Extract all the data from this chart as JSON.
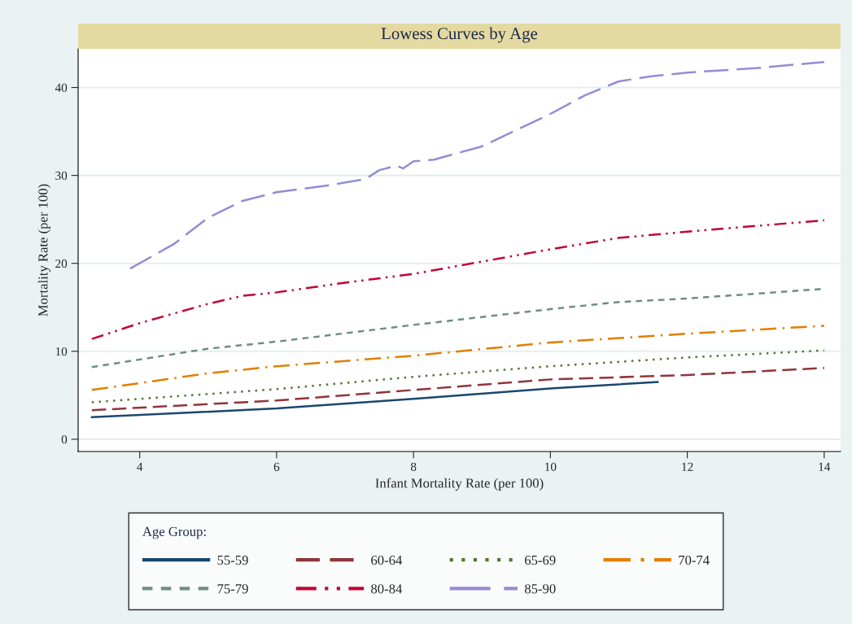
{
  "chart_data": {
    "type": "line",
    "title": "Lowess Curves by Age",
    "xlabel": "Infant Mortality Rate (per 100)",
    "ylabel": "Mortality Rate (per 100)",
    "legend_title": "Age Group:",
    "xlim": [
      3.1,
      14.24
    ],
    "xticks": [
      4,
      6,
      8,
      10,
      12,
      14
    ],
    "ylim": [
      -1.4,
      44.4
    ],
    "yticks": [
      0,
      10,
      20,
      30,
      40
    ],
    "grid": "y",
    "legend": "bottom",
    "marker": "none",
    "series": [
      {
        "name": "55-59",
        "color": "#1a476f",
        "line_style": "solid",
        "x": [
          3.3,
          6.0,
          8.0,
          10.04,
          11.57
        ],
        "values": [
          2.5,
          3.5,
          4.6,
          5.8,
          6.5
        ]
      },
      {
        "name": "60-64",
        "color": "#90353b",
        "line_style": "dashed",
        "x": [
          3.3,
          6,
          8,
          10,
          12,
          14
        ],
        "values": [
          3.3,
          4.4,
          5.6,
          6.8,
          7.3,
          8.1
        ]
      },
      {
        "name": "65-69",
        "color": "#55752f",
        "line_style": "dotted",
        "x": [
          3.3,
          6,
          8,
          10,
          12,
          14
        ],
        "values": [
          4.2,
          5.7,
          7.1,
          8.3,
          9.3,
          10.1
        ]
      },
      {
        "name": "70-74",
        "color": "#e37e00",
        "line_style": "dashdot",
        "x": [
          3.3,
          5,
          6,
          8,
          10,
          12,
          14
        ],
        "values": [
          5.6,
          7.5,
          8.3,
          9.5,
          11.0,
          12.0,
          12.9
        ]
      },
      {
        "name": "75-79",
        "color": "#6e8e84",
        "line_style": "shortdash",
        "x": [
          3.3,
          5,
          6,
          8,
          10,
          11,
          12,
          14
        ],
        "values": [
          8.2,
          10.3,
          11.1,
          13.0,
          14.8,
          15.6,
          16.0,
          17.1
        ]
      },
      {
        "name": "80-84",
        "color": "#c10534",
        "line_style": "dashdotdot",
        "x": [
          3.3,
          4,
          5,
          5.5,
          6,
          7,
          8,
          9,
          10,
          11,
          12,
          14
        ],
        "values": [
          11.4,
          13.2,
          15.4,
          16.3,
          16.7,
          17.8,
          18.8,
          20.2,
          21.6,
          22.9,
          23.6,
          24.9
        ]
      },
      {
        "name": "85-90",
        "color": "#938dd2",
        "line_style": "longdash",
        "x": [
          3.86,
          4.5,
          5,
          5.5,
          6,
          6.7,
          7.3,
          7.5,
          7.75,
          7.85,
          8.0,
          8.3,
          9,
          10,
          10.5,
          11,
          11.5,
          12,
          13,
          14
        ],
        "values": [
          19.4,
          22.2,
          25.2,
          27.1,
          28.1,
          28.8,
          29.6,
          30.6,
          31.1,
          30.8,
          31.6,
          31.8,
          33.3,
          37.0,
          39.1,
          40.7,
          41.3,
          41.7,
          42.2,
          42.9
        ]
      }
    ]
  }
}
